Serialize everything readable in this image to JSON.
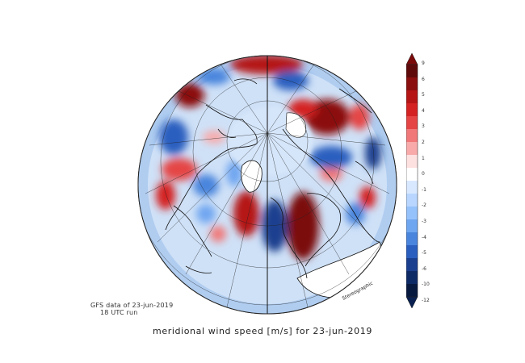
{
  "title": "meridional wind speed [m/s] for 23-jun-2019",
  "credit": {
    "line1": "GFS data of 23-jun-2019",
    "line2": "18 UTC  run"
  },
  "projection_note": "Stereographic",
  "colorbar": {
    "labels": [
      "9",
      "6",
      "5",
      "4",
      "3",
      "2",
      "1",
      "0",
      "-1",
      "-2",
      "-3",
      "-4",
      "-5",
      "-6",
      "-10",
      "-12"
    ],
    "colors": [
      "#5e0a0a",
      "#8b0f0f",
      "#b51515",
      "#d42222",
      "#e54545",
      "#f07878",
      "#f8aaaa",
      "#fde0e0",
      "#ffffff",
      "#d8e8ff",
      "#b8d6ff",
      "#96c2fb",
      "#6fa6f0",
      "#4a85dd",
      "#2a5fbf",
      "#1a3f8f",
      "#0e2a66",
      "#08193f"
    ],
    "top_color": "#7b0a0a",
    "bottom_color": "#0a2050"
  },
  "colors": {
    "ocean_light": "#bcd6f5",
    "land_outline": "#111111",
    "positive": "#c41a1a",
    "negative": "#2a6fd6"
  }
}
